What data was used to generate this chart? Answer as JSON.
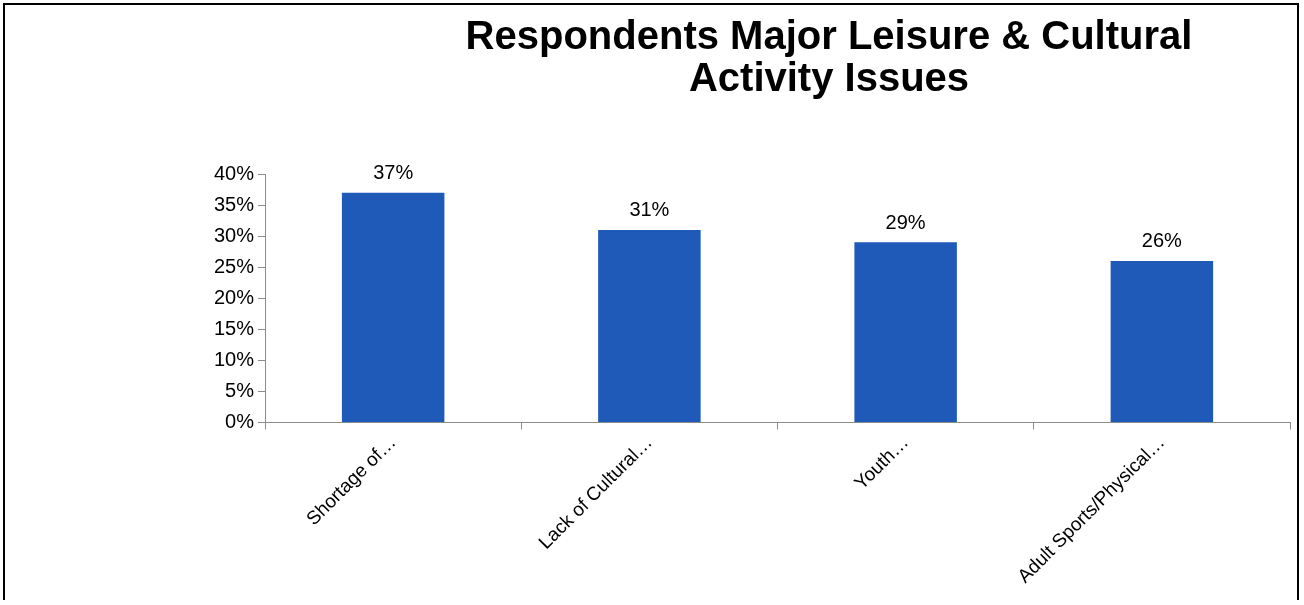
{
  "chart_data": {
    "type": "bar",
    "title": "Respondents Major Leisure & Cultural Activity Issues",
    "categories": [
      "Shortage of…",
      "Lack of Cultural…",
      "Youth…",
      "Adult Sports/Physical…"
    ],
    "values": [
      37,
      31,
      29,
      26
    ],
    "value_labels": [
      "37%",
      "31%",
      "29%",
      "26%"
    ],
    "color": "#1f5ab9",
    "ylim": [
      0,
      40
    ],
    "yticks": [
      {
        "value": 0,
        "label": "0%"
      },
      {
        "value": 5,
        "label": "5%"
      },
      {
        "value": 10,
        "label": "10%"
      },
      {
        "value": 15,
        "label": "15%"
      },
      {
        "value": 20,
        "label": "20%"
      },
      {
        "value": 25,
        "label": "25%"
      },
      {
        "value": 30,
        "label": "30%"
      },
      {
        "value": 35,
        "label": "35%"
      },
      {
        "value": 40,
        "label": "40%"
      }
    ]
  }
}
